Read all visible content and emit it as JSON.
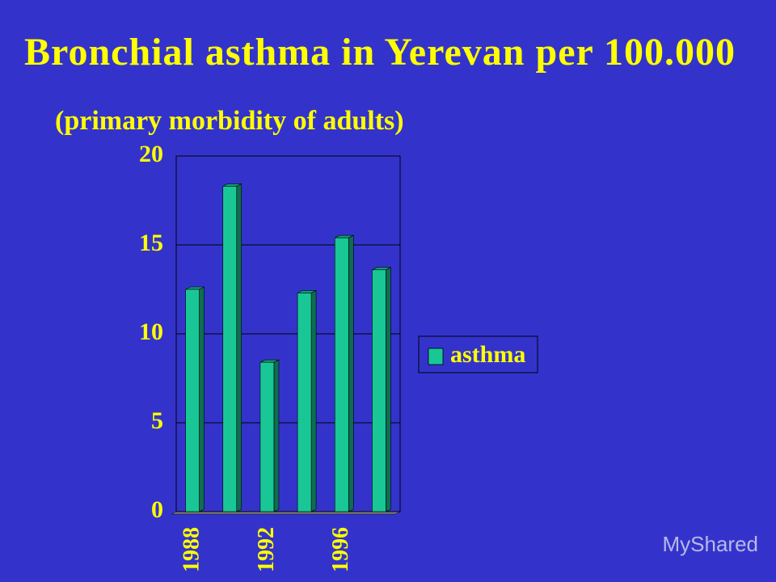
{
  "chart_data": {
    "type": "bar",
    "title": "Bronchial asthma in Yerevan per 100.000",
    "subtitle": "(primary morbidity of adults)",
    "categories": [
      "1988",
      null,
      "1992",
      null,
      "1996",
      null
    ],
    "series": [
      {
        "name": "asthma",
        "color": "#19c796",
        "values": [
          12.5,
          18.3,
          8.4,
          12.3,
          15.4,
          13.6
        ]
      }
    ],
    "ylim": [
      0,
      20
    ],
    "yticks": [
      0,
      5,
      10,
      15,
      20
    ],
    "grid": true,
    "legend": "right",
    "watermark": "MyShared"
  }
}
